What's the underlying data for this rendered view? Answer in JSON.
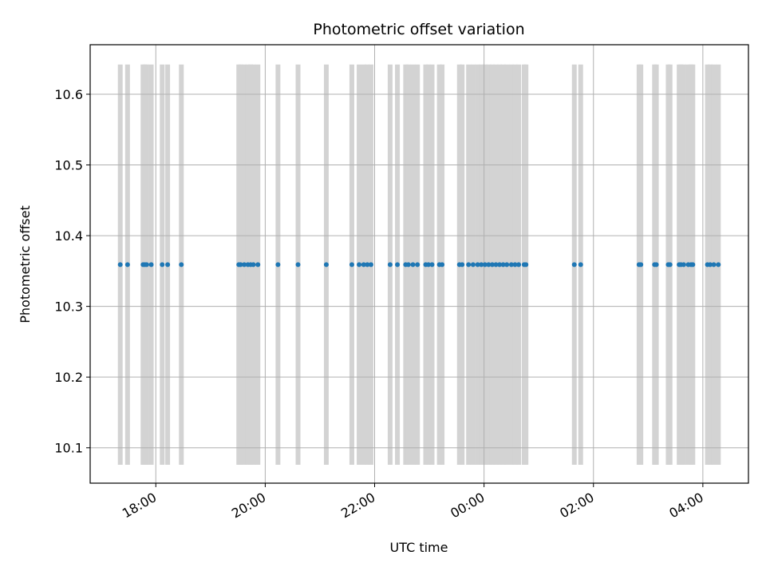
{
  "chart_data": {
    "type": "scatter",
    "title": "Photometric offset variation",
    "xlabel": "UTC time",
    "ylabel": "Photometric offset",
    "x_axis": {
      "kind": "time",
      "range": [
        "2024-01-01 16:48",
        "2024-01-02 04:50"
      ]
    },
    "ylim": [
      10.05,
      10.67
    ],
    "x_ticks": [
      {
        "t": "2024-01-01 18:00",
        "label": "18:00"
      },
      {
        "t": "2024-01-01 20:00",
        "label": "20:00"
      },
      {
        "t": "2024-01-01 22:00",
        "label": "22:00"
      },
      {
        "t": "2024-01-02 00:00",
        "label": "00:00"
      },
      {
        "t": "2024-01-02 02:00",
        "label": "02:00"
      },
      {
        "t": "2024-01-02 04:00",
        "label": "04:00"
      }
    ],
    "y_ticks": [
      {
        "v": 10.1,
        "label": "10.1"
      },
      {
        "v": 10.2,
        "label": "10.2"
      },
      {
        "v": 10.3,
        "label": "10.3"
      },
      {
        "v": 10.4,
        "label": "10.4"
      },
      {
        "v": 10.5,
        "label": "10.5"
      },
      {
        "v": 10.6,
        "label": "10.6"
      }
    ],
    "grid": true,
    "point_color": "#1f77b4",
    "band_color": "#d3d3d3",
    "band_range": [
      10.076,
      10.642
    ],
    "y_value": 10.359,
    "x": [
      "2024-01-01 17:21",
      "2024-01-01 17:29",
      "2024-01-01 17:46",
      "2024-01-01 17:48",
      "2024-01-01 17:50",
      "2024-01-01 17:55",
      "2024-01-01 18:07",
      "2024-01-01 18:13",
      "2024-01-01 18:28",
      "2024-01-01 19:31",
      "2024-01-01 19:33",
      "2024-01-01 19:37",
      "2024-01-01 19:41",
      "2024-01-01 19:44",
      "2024-01-01 19:47",
      "2024-01-01 19:52",
      "2024-01-01 20:14",
      "2024-01-01 20:36",
      "2024-01-01 21:07",
      "2024-01-01 21:35",
      "2024-01-01 21:43",
      "2024-01-01 21:48",
      "2024-01-01 21:52",
      "2024-01-01 21:56",
      "2024-01-01 22:17",
      "2024-01-01 22:25",
      "2024-01-01 22:34",
      "2024-01-01 22:37",
      "2024-01-01 22:42",
      "2024-01-01 22:47",
      "2024-01-01 22:56",
      "2024-01-01 22:59",
      "2024-01-01 23:03",
      "2024-01-01 23:11",
      "2024-01-01 23:14",
      "2024-01-01 23:33",
      "2024-01-01 23:36",
      "2024-01-01 23:43",
      "2024-01-01 23:48",
      "2024-01-01 23:53",
      "2024-01-01 23:57",
      "2024-01-02 00:01",
      "2024-01-02 00:05",
      "2024-01-02 00:09",
      "2024-01-02 00:13",
      "2024-01-02 00:17",
      "2024-01-02 00:21",
      "2024-01-02 00:25",
      "2024-01-02 00:30",
      "2024-01-02 00:34",
      "2024-01-02 00:38",
      "2024-01-02 00:44",
      "2024-01-02 00:46",
      "2024-01-02 01:39",
      "2024-01-02 01:46",
      "2024-01-02 02:50",
      "2024-01-02 02:52",
      "2024-01-02 03:07",
      "2024-01-02 03:09",
      "2024-01-02 03:22",
      "2024-01-02 03:24",
      "2024-01-02 03:34",
      "2024-01-02 03:36",
      "2024-01-02 03:39",
      "2024-01-02 03:44",
      "2024-01-02 03:47",
      "2024-01-02 03:49",
      "2024-01-02 04:05",
      "2024-01-02 04:08",
      "2024-01-02 04:12",
      "2024-01-02 04:17"
    ],
    "y_note": "all points share y_value"
  }
}
